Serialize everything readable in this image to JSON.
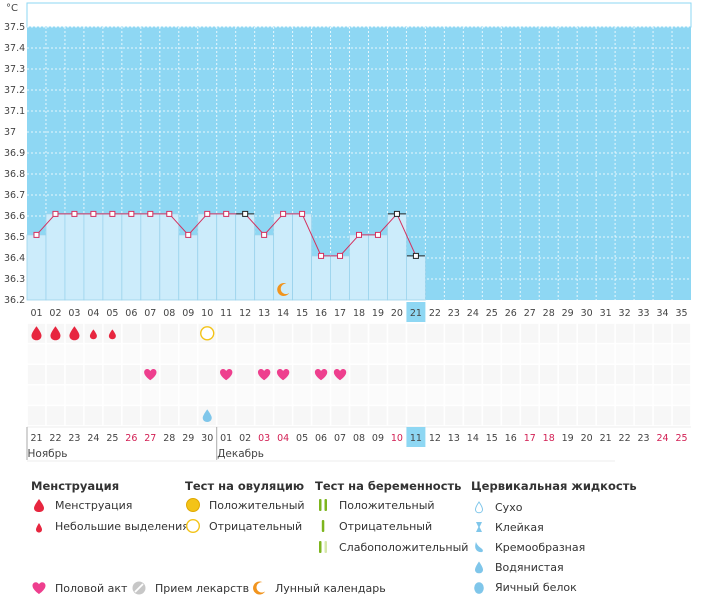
{
  "chart_data": {
    "type": "line",
    "unit": "°C",
    "y_ticks": [
      "36.2",
      "36.3",
      "36.4",
      "36.5",
      "36.6",
      "36.7",
      "36.8",
      "36.9",
      "37",
      "37.1",
      "37.2",
      "37.3",
      "37.4",
      "37.5"
    ],
    "ylim": [
      36.2,
      37.5
    ],
    "cycle_days": [
      "01",
      "02",
      "03",
      "04",
      "05",
      "06",
      "07",
      "08",
      "09",
      "10",
      "11",
      "12",
      "13",
      "14",
      "15",
      "16",
      "17",
      "18",
      "19",
      "20",
      "21",
      "22",
      "23",
      "24",
      "25",
      "26",
      "27",
      "28",
      "29",
      "30",
      "31",
      "32",
      "33",
      "34",
      "35"
    ],
    "temperatures": [
      36.51,
      36.61,
      36.61,
      36.61,
      36.61,
      36.61,
      36.61,
      36.61,
      36.51,
      36.61,
      36.61,
      36.61,
      36.51,
      36.61,
      36.61,
      36.41,
      36.41,
      36.51,
      36.51,
      36.61,
      36.41
    ],
    "excluded_points": [
      12,
      20,
      21
    ],
    "current_day": 21,
    "dates": [
      "21",
      "22",
      "23",
      "24",
      "25",
      "26",
      "27",
      "28",
      "29",
      "30",
      "01",
      "02",
      "03",
      "04",
      "05",
      "06",
      "07",
      "08",
      "09",
      "10",
      "11",
      "12",
      "13",
      "14",
      "15",
      "16",
      "17",
      "18",
      "19",
      "20",
      "21",
      "22",
      "23",
      "24",
      "25"
    ],
    "red_dates": [
      6,
      7,
      13,
      14,
      20,
      27,
      28,
      34,
      35
    ],
    "month_labels": [
      {
        "day": 1,
        "label": "Ноябрь"
      },
      {
        "day": 11,
        "label": "Декабрь"
      }
    ],
    "markers": {
      "menstruation_big": [
        1,
        2,
        3
      ],
      "menstruation_small": [
        4,
        5
      ],
      "ovulation_negative": [
        10
      ],
      "intercourse": [
        7,
        11,
        13,
        14,
        16,
        17
      ],
      "fluid_watery": [
        10
      ],
      "lunar": [
        14
      ]
    },
    "colors": {
      "sky": "#8ed7f3",
      "bar": "#ccecfb",
      "bar_border": "#9bd3ec",
      "line": "#d4305e",
      "heart": "#ee3f8e",
      "drop": "#e7263f",
      "ovulation": "#f3c318",
      "lunar": "#f1941e",
      "fluid": "#7fc6ea",
      "today": "#8ed7f3",
      "weekend": "#d22054"
    }
  },
  "legend": {
    "menstruation": {
      "title": "Менструация",
      "items": [
        "Менструация",
        "Небольшие выделения"
      ]
    },
    "ovulation_test": {
      "title": "Тест на овуляцию",
      "items": [
        "Положительный",
        "Отрицательный"
      ]
    },
    "pregnancy_test": {
      "title": "Тест на беременность",
      "items": [
        "Положительный",
        "Отрицательный",
        "Слабоположительный"
      ]
    },
    "cervical_fluid": {
      "title": "Цервикальная жидкость",
      "items": [
        "Сухо",
        "Клейкая",
        "Кремообразная",
        "Водянистая",
        "Яичный белок"
      ]
    },
    "bottom": [
      "Половой акт",
      "Прием лекарств",
      "Лунный календарь"
    ]
  }
}
